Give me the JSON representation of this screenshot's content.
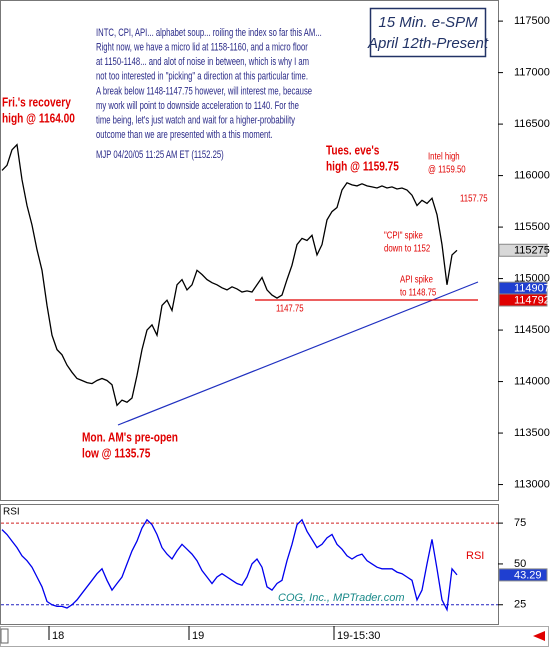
{
  "chart_data": [
    {
      "type": "line",
      "title": "15 Min. e-SPM",
      "subtitle": "April 12th-Present",
      "commentary": [
        "INTC, CPI, API... alphabet soup... roiling the index so far this AM...",
        "Right now, we have a micro lid at 1158-1160, and a micro floor",
        "at 1150-1148... and alot of noise in between, which is why I am",
        "not too interested in \"picking\" a direction at this particular time.",
        "A break below 1148-1147.75 however, will interest me, because",
        "my work will point to downside acceleration to 1140. For the",
        "time being, let's just watch and wait for a higher-probability",
        "outcome than we are presented with a this moment.",
        "MJP 04/20/05 11:25 AM ET  (1152.25)"
      ],
      "annotations": [
        {
          "lines": [
            "Fri.'s recovery",
            "high @ 1164.00"
          ]
        },
        {
          "lines": [
            "Tues. eve's",
            "high @ 1159.75"
          ]
        },
        {
          "lines": [
            "Intel high",
            "@ 1159.50"
          ]
        },
        {
          "lines": [
            "1157.75"
          ]
        },
        {
          "lines": [
            "\"CPI\" spike",
            "down to 1152"
          ]
        },
        {
          "lines": [
            "API spike",
            "to 1148.75"
          ]
        },
        {
          "lines": [
            "1147.75"
          ]
        },
        {
          "lines": [
            "Mon. AM's pre-open",
            "low @ 1135.75"
          ]
        }
      ],
      "annotation_color": "#e00000",
      "categories": [
        null,
        null,
        null,
        null,
        null,
        null,
        null,
        null,
        null,
        null,
        null,
        "18",
        null,
        null,
        null,
        null,
        null,
        null,
        null,
        null,
        null,
        null,
        null,
        null,
        null,
        null,
        null,
        null,
        null,
        null,
        null,
        null,
        null,
        null,
        null,
        null,
        null,
        null,
        null,
        "19",
        null,
        null,
        null,
        null,
        null,
        null,
        null,
        null,
        null,
        null,
        null,
        null,
        null,
        null,
        null,
        null,
        null,
        null,
        null,
        null,
        null,
        null,
        null,
        null,
        null,
        null,
        null,
        null,
        "19-15:30",
        null,
        null,
        null,
        null,
        null,
        null,
        null,
        null,
        null,
        null,
        null,
        null,
        null,
        null,
        null,
        null,
        null,
        null,
        null,
        null,
        null,
        null,
        null
      ],
      "series": [
        {
          "color": "#000000",
          "values": [
            116050,
            116100,
            116250,
            116300,
            115960,
            115710,
            115520,
            115280,
            115080,
            114740,
            114450,
            114310,
            114260,
            114160,
            114090,
            114030,
            114010,
            113990,
            113980,
            114010,
            114030,
            114010,
            113970,
            113770,
            113820,
            113800,
            113840,
            114060,
            114310,
            114500,
            114550,
            114450,
            114740,
            114790,
            114690,
            114940,
            114990,
            114890,
            114940,
            115080,
            115040,
            114990,
            114960,
            114940,
            114910,
            114890,
            114920,
            114900,
            114870,
            114880,
            114870,
            114940,
            115010,
            114890,
            114840,
            114810,
            114840,
            114990,
            115130,
            115330,
            115390,
            115370,
            115420,
            115230,
            115330,
            115570,
            115650,
            115690,
            115860,
            115930,
            115910,
            115900,
            115920,
            115900,
            115890,
            115880,
            115900,
            115880,
            115890,
            115870,
            115880,
            115860,
            115810,
            115710,
            115760,
            115730,
            115780,
            115620,
            115330,
            114940,
            115230,
            115275
          ]
        }
      ],
      "ylim": [
        112850,
        117705
      ],
      "yticks": [
        113000,
        113500,
        114000,
        114500,
        115000,
        115500,
        116000,
        116500,
        117000,
        117500
      ],
      "levels": [
        {
          "value": 115275,
          "color": "#d8d8d8",
          "text_color": "#000000"
        },
        {
          "value": 114907,
          "color": "#1f3fd0",
          "text_color": "#ffffff"
        },
        {
          "value": 114792,
          "color": "#e00000",
          "text_color": "#ffffff",
          "line": true
        }
      ]
    },
    {
      "type": "line",
      "title": "RSI",
      "credit": "COG, Inc., MPTrader.com",
      "series": [
        {
          "name": "RSI",
          "color": "#0000ee",
          "legend_color": "#e00000",
          "values": [
            71,
            68,
            64,
            60,
            55,
            52,
            48,
            42,
            36,
            27,
            25,
            24,
            24,
            23,
            25,
            28,
            32,
            36,
            40,
            44,
            47,
            40,
            34,
            38,
            42,
            50,
            58,
            64,
            72,
            77,
            74,
            68,
            60,
            56,
            53,
            58,
            62,
            59,
            56,
            52,
            46,
            42,
            38,
            42,
            44,
            42,
            40,
            38,
            37,
            42,
            50,
            53,
            48,
            36,
            34,
            38,
            40,
            52,
            62,
            74,
            77,
            70,
            65,
            60,
            62,
            66,
            68,
            62,
            59,
            55,
            53,
            55,
            56,
            52,
            50,
            48,
            47,
            47,
            47,
            45,
            44,
            42,
            40,
            28,
            34,
            50,
            65,
            47,
            28,
            22,
            47,
            43.29
          ]
        }
      ],
      "ylim": [
        12.6,
        86.7
      ],
      "yticks": [
        25,
        50,
        75
      ],
      "dashed_levels": [
        {
          "value": 75,
          "color": "#d02020"
        },
        {
          "value": 25,
          "color": "#2020c0"
        }
      ],
      "levels": [
        {
          "value": 43.29,
          "color": "#1f3fd0",
          "text_color": "#ffffff"
        }
      ]
    }
  ]
}
